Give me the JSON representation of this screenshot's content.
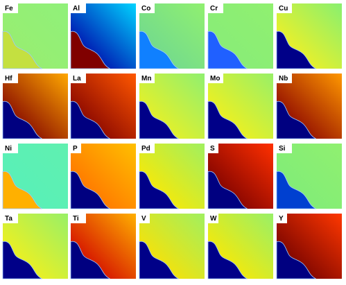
{
  "panels": [
    "Fe",
    "Al",
    "Co",
    "Cr",
    "Cu",
    "Hf",
    "La",
    "Mn",
    "Mo",
    "Nb",
    "Ni",
    "P",
    "Pd",
    "S",
    "Si",
    "Ta",
    "Ti",
    "V",
    "W",
    "Y"
  ]
}
